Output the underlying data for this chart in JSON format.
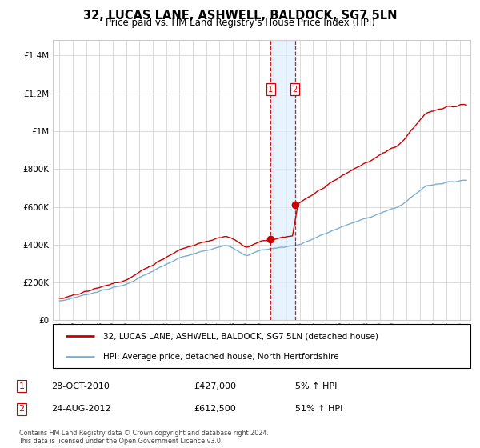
{
  "title": "32, LUCAS LANE, ASHWELL, BALDOCK, SG7 5LN",
  "subtitle": "Price paid vs. HM Land Registry's House Price Index (HPI)",
  "legend_line1": "32, LUCAS LANE, ASHWELL, BALDOCK, SG7 5LN (detached house)",
  "legend_line2": "HPI: Average price, detached house, North Hertfordshire",
  "sale1_date": "28-OCT-2010",
  "sale1_price": "£427,000",
  "sale1_hpi": "5% ↑ HPI",
  "sale2_date": "24-AUG-2012",
  "sale2_price": "£612,500",
  "sale2_hpi": "51% ↑ HPI",
  "footer": "Contains HM Land Registry data © Crown copyright and database right 2024.\nThis data is licensed under the Open Government Licence v3.0.",
  "hpi_color": "#7aafd4",
  "price_color": "#cc0000",
  "sale1_year": 2010.83,
  "sale2_year": 2012.65,
  "ylim_min": 0,
  "ylim_max": 1480000,
  "xlim_min": 1994.5,
  "xlim_max": 2025.8,
  "grid_color": "#cccccc",
  "shade_color": "#ddeeff"
}
